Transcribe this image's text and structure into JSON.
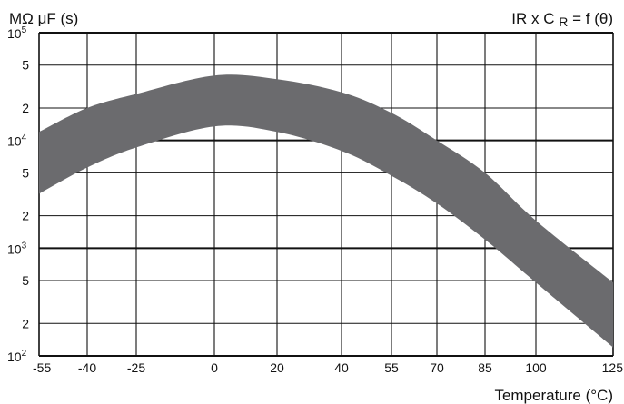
{
  "chart_data": {
    "type": "area",
    "ylabel": "MΩ μF (s)",
    "formula": "IR x C R = f (θ)",
    "formula_main": "IR x C",
    "formula_sub": "R",
    "formula_tail": "= f (θ)",
    "xlabel": "Temperature (°C)",
    "x_scale": "categorical-tick",
    "x_ticks": [
      -55,
      -40,
      -25,
      0,
      20,
      40,
      55,
      70,
      85,
      100,
      125
    ],
    "y_scale": "log",
    "ylim": [
      100,
      100000
    ],
    "y_major_ticks": [
      {
        "value": 100,
        "base": "10",
        "exp": "2"
      },
      {
        "value": 1000,
        "base": "10",
        "exp": "3"
      },
      {
        "value": 10000,
        "base": "10",
        "exp": "4"
      },
      {
        "value": 100000,
        "base": "10",
        "exp": "5"
      }
    ],
    "y_minor_ticks": [
      {
        "value": 200,
        "label": "2"
      },
      {
        "value": 500,
        "label": "5"
      },
      {
        "value": 2000,
        "label": "2"
      },
      {
        "value": 5000,
        "label": "5"
      },
      {
        "value": 20000,
        "label": "2"
      },
      {
        "value": 50000,
        "label": "5"
      }
    ],
    "grid": true,
    "band_color": "#6b6b6e",
    "band": {
      "x": [
        -55,
        -40,
        -25,
        0,
        20,
        40,
        55,
        70,
        85,
        100,
        125
      ],
      "upper": [
        12000,
        20000,
        27000,
        40000,
        37000,
        28000,
        18000,
        10000,
        5000,
        1800,
        480
      ],
      "lower": [
        3200,
        5600,
        8600,
        13500,
        12000,
        8000,
        4700,
        2600,
        1200,
        480,
        120
      ]
    }
  }
}
